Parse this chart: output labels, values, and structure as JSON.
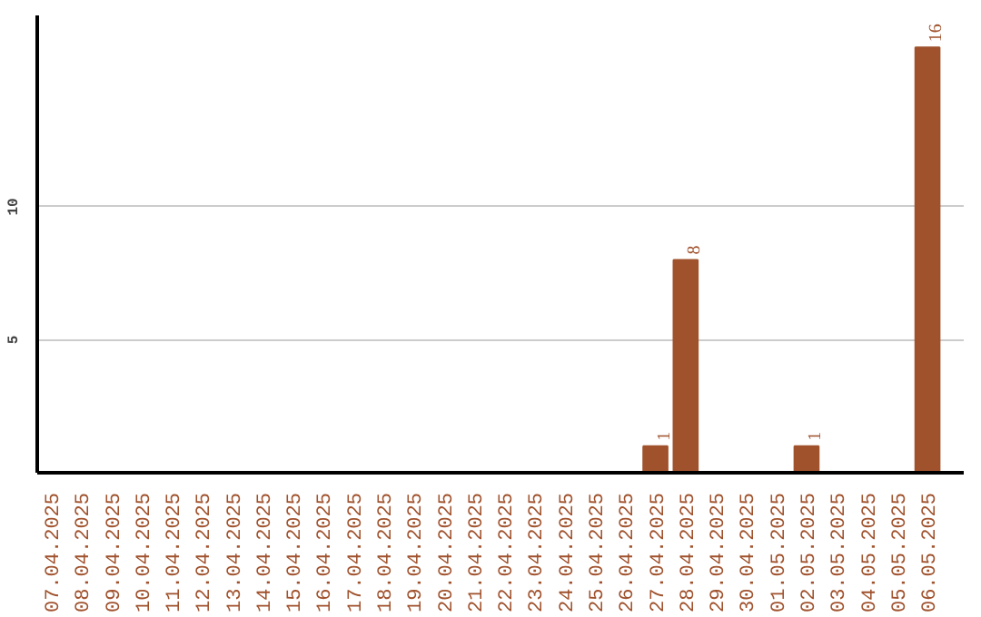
{
  "chart_data": {
    "type": "bar",
    "categories": [
      "07.04.2025",
      "08.04.2025",
      "09.04.2025",
      "10.04.2025",
      "11.04.2025",
      "12.04.2025",
      "13.04.2025",
      "14.04.2025",
      "15.04.2025",
      "16.04.2025",
      "17.04.2025",
      "18.04.2025",
      "19.04.2025",
      "20.04.2025",
      "21.04.2025",
      "22.04.2025",
      "23.04.2025",
      "24.04.2025",
      "25.04.2025",
      "26.04.2025",
      "27.04.2025",
      "28.04.2025",
      "29.04.2025",
      "30.04.2025",
      "01.05.2025",
      "02.05.2025",
      "03.05.2025",
      "04.05.2025",
      "05.05.2025",
      "06.05.2025"
    ],
    "values": [
      0,
      0,
      0,
      0,
      0,
      0,
      0,
      0,
      0,
      0,
      0,
      0,
      0,
      0,
      0,
      0,
      0,
      0,
      0,
      0,
      1,
      8,
      0,
      0,
      0,
      1,
      0,
      0,
      0,
      16
    ],
    "value_labels": [
      null,
      null,
      null,
      null,
      null,
      null,
      null,
      null,
      null,
      null,
      null,
      null,
      null,
      null,
      null,
      null,
      null,
      null,
      null,
      null,
      "1",
      "8",
      null,
      null,
      null,
      "1",
      null,
      null,
      null,
      "16"
    ],
    "color": "#a0522d",
    "ylim": [
      0,
      17.2
    ],
    "yticks": [
      5,
      10
    ],
    "grid": "y"
  }
}
